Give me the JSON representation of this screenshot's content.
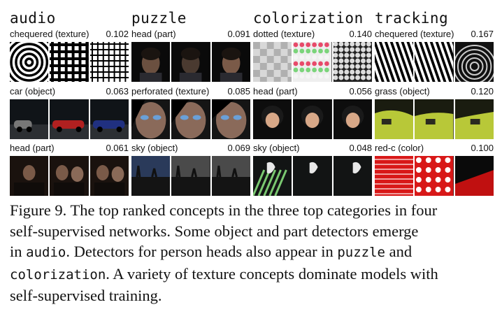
{
  "columns": [
    "audio",
    "puzzle",
    "colorization",
    "tracking"
  ],
  "rows": [
    [
      {
        "label": "chequered (texture)",
        "score": "0.102",
        "scene": "checker"
      },
      {
        "label": "head (part)",
        "score": "0.091",
        "scene": "head"
      },
      {
        "label": "dotted (texture)",
        "score": "0.140",
        "scene": "dots"
      },
      {
        "label": "chequered (texture)",
        "score": "0.167",
        "scene": "bwchecker"
      }
    ],
    [
      {
        "label": "car (object)",
        "score": "0.063",
        "scene": "car"
      },
      {
        "label": "perforated (texture)",
        "score": "0.085",
        "scene": "face"
      },
      {
        "label": "head (part)",
        "score": "0.056",
        "scene": "baby"
      },
      {
        "label": "grass (object)",
        "score": "0.120",
        "scene": "grass"
      }
    ],
    [
      {
        "label": "head (part)",
        "score": "0.061",
        "scene": "people"
      },
      {
        "label": "sky (object)",
        "score": "0.069",
        "scene": "sky"
      },
      {
        "label": "sky (object)",
        "score": "0.048",
        "scene": "darksky"
      },
      {
        "label": "red-c (color)",
        "score": "0.100",
        "scene": "red"
      }
    ]
  ],
  "caption": {
    "line1": "Figure 9. The top ranked concepts in the three top categories in four",
    "line2": "self-supervised networks. Some object and part detectors emerge",
    "line3_pre": "in ",
    "line3_mono": "audio",
    "line3_post": ". Detectors for person heads also appear in ",
    "line3_mono2": "puzzle",
    "line3_post2": " and",
    "line4_mono": "colorization",
    "line4_post": ". A variety of texture concepts dominate models with",
    "line5": "self-supervised training."
  }
}
